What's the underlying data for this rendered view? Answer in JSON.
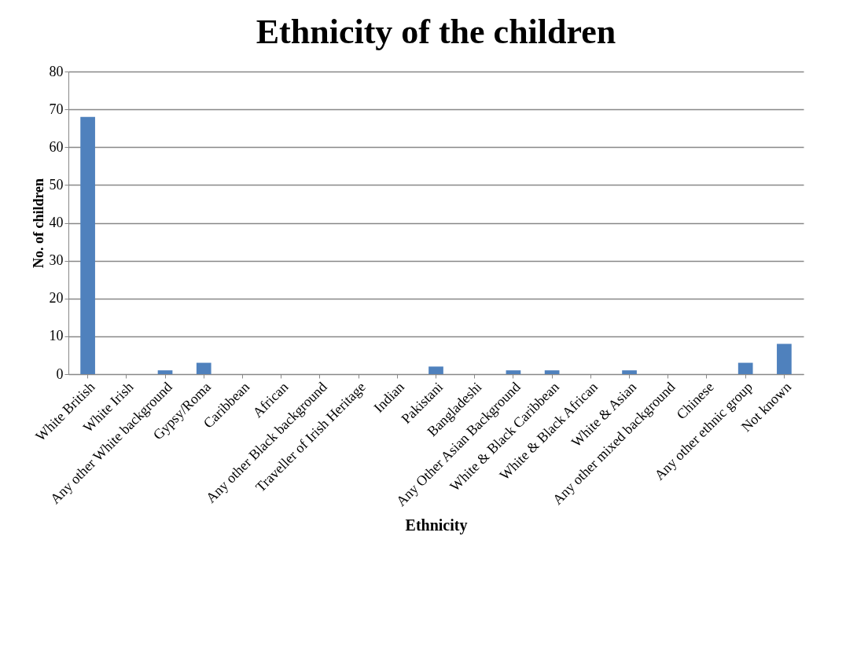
{
  "chart_data": {
    "type": "bar",
    "title": "Ethnicity of the children",
    "xlabel": "Ethnicity",
    "ylabel": "No. of children",
    "categories": [
      "White British",
      "White Irish",
      "Any other White background",
      "Gypsy/Roma",
      "Caribbean",
      "African",
      "Any other Black background",
      "Traveller of Irish Heritage",
      "Indian",
      "Pakistani",
      "Bangladeshi",
      "Any Other Asian Background",
      "White & Black Caribbean",
      "White & Black African",
      "White & Asian",
      "Any other mixed background",
      "Chinese",
      "Any other ethnic group",
      "Not known"
    ],
    "values": [
      68,
      0,
      1,
      3,
      0,
      0,
      0,
      0,
      0,
      2,
      0,
      1,
      1,
      0,
      1,
      0,
      0,
      3,
      8
    ],
    "color": "#4f81bd",
    "ylim": [
      0,
      80
    ],
    "yticks": [
      0,
      10,
      20,
      30,
      40,
      50,
      60,
      70,
      80
    ],
    "grid": "y"
  }
}
